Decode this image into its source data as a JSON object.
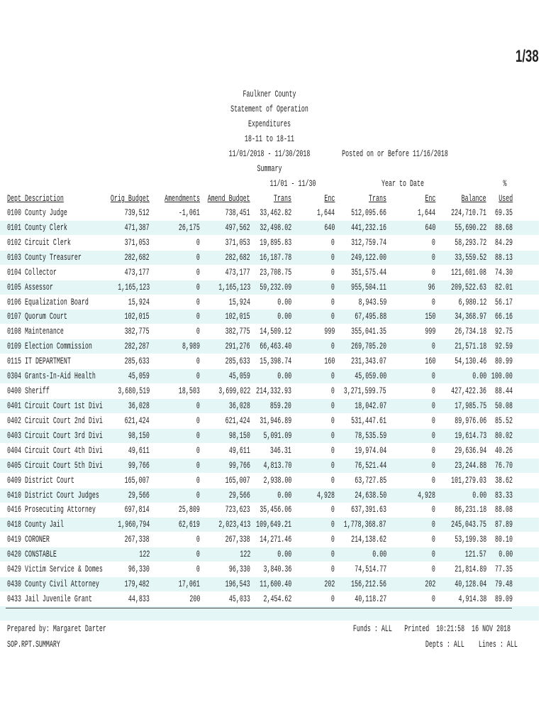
{
  "page_number": "1/38",
  "header": {
    "lines": [
      "Faulkner County",
      "Statement of Operation",
      "Expenditures",
      "18-11 to 18-11",
      "11/01/2018 - 11/30/2018",
      "Summary"
    ],
    "posted": "Posted on or Before 11/16/2018"
  },
  "table": {
    "group_headers": [
      "11/01 - 11/30",
      "Year to Date",
      "%"
    ],
    "headers": [
      "Dept Description",
      "Orig Budget",
      "Amendments",
      "Amend Budget",
      "Trans",
      "Enc",
      "Trans",
      "Enc",
      "Balance",
      "Used"
    ],
    "rows": [
      [
        "0100 County Judge",
        "739,512",
        "-1,061",
        "738,451",
        "33,462.82",
        "1,644",
        "512,095.66",
        "1,644",
        "224,710.71",
        "69.35"
      ],
      [
        "0101 County Clerk",
        "471,387",
        "26,175",
        "497,562",
        "32,498.02",
        "640",
        "441,232.16",
        "640",
        "55,690.22",
        "88.68"
      ],
      [
        "0102 Circuit Clerk",
        "371,053",
        "0",
        "371,053",
        "19,895.83",
        "0",
        "312,759.74",
        "0",
        "58,293.72",
        "84.29"
      ],
      [
        "0103 County Treasurer",
        "282,682",
        "0",
        "282,682",
        "16,187.78",
        "0",
        "249,122.00",
        "0",
        "33,559.52",
        "88.13"
      ],
      [
        "0104 Collector",
        "473,177",
        "0",
        "473,177",
        "23,708.75",
        "0",
        "351,575.44",
        "0",
        "121,601.08",
        "74.30"
      ],
      [
        "0105 Assessor",
        "1,165,123",
        "0",
        "1,165,123",
        "59,232.09",
        "0",
        "955,504.11",
        "96",
        "209,522.63",
        "82.01"
      ],
      [
        "0106 Equalization Board",
        "15,924",
        "0",
        "15,924",
        "0.00",
        "0",
        "8,943.59",
        "0",
        "6,980.12",
        "56.17"
      ],
      [
        "0107 Quorum Court",
        "102,015",
        "0",
        "102,015",
        "0.00",
        "0",
        "67,495.88",
        "150",
        "34,368.97",
        "66.16"
      ],
      [
        "0108 Maintenance",
        "382,775",
        "0",
        "382,775",
        "14,509.12",
        "999",
        "355,041.35",
        "999",
        "26,734.18",
        "92.75"
      ],
      [
        "0109 Election Commission",
        "282,287",
        "8,989",
        "291,276",
        "66,463.40",
        "0",
        "269,705.20",
        "0",
        "21,571.18",
        "92.59"
      ],
      [
        "0115 IT DEPARTMENT",
        "285,633",
        "0",
        "285,633",
        "15,398.74",
        "160",
        "231,343.07",
        "160",
        "54,130.46",
        "80.99"
      ],
      [
        "0304 Grants-In-Aid Health",
        "45,059",
        "0",
        "45,059",
        "0.00",
        "0",
        "45,059.00",
        "0",
        "0.00",
        "100.00"
      ],
      [
        "0400 Sheriff",
        "3,680,519",
        "18,503",
        "3,699,022",
        "214,332.93",
        "0",
        "3,271,599.75",
        "0",
        "427,422.36",
        "88.44"
      ],
      [
        "0401 Circuit Court 1st Divi",
        "36,028",
        "0",
        "36,028",
        "859.20",
        "0",
        "18,042.07",
        "0",
        "17,985.75",
        "50.08"
      ],
      [
        "0402 Circuit Court 2nd Divi",
        "621,424",
        "0",
        "621,424",
        "31,946.89",
        "0",
        "531,447.61",
        "0",
        "89,976.06",
        "85.52"
      ],
      [
        "0403 Circuit Court 3rd Divi",
        "98,150",
        "0",
        "98,150",
        "5,091.09",
        "0",
        "78,535.59",
        "0",
        "19,614.73",
        "80.02"
      ],
      [
        "0404 Circuit Court 4th Divi",
        "49,611",
        "0",
        "49,611",
        "346.31",
        "0",
        "19,974.04",
        "0",
        "29,636.94",
        "40.26"
      ],
      [
        "0405 Circuit Court 5th Divi",
        "99,766",
        "0",
        "99,766",
        "4,813.70",
        "0",
        "76,521.44",
        "0",
        "23,244.88",
        "76.70"
      ],
      [
        "0409 District Court",
        "165,007",
        "0",
        "165,007",
        "2,938.00",
        "0",
        "63,727.85",
        "0",
        "101,279.03",
        "38.62"
      ],
      [
        "0410 District Court Judges",
        "29,566",
        "0",
        "29,566",
        "0.00",
        "4,928",
        "24,638.50",
        "4,928",
        "0.00",
        "83.33"
      ],
      [
        "0416 Prosecuting Attorney",
        "697,814",
        "25,809",
        "723,623",
        "35,456.06",
        "0",
        "637,391.63",
        "0",
        "86,231.18",
        "88.08"
      ],
      [
        "0418 County Jail",
        "1,960,794",
        "62,619",
        "2,023,413",
        "109,649.21",
        "0",
        "1,778,368.87",
        "0",
        "245,043.75",
        "87.89"
      ],
      [
        "0419 CORONER",
        "267,338",
        "0",
        "267,338",
        "14,271.46",
        "0",
        "214,138.62",
        "0",
        "53,199.38",
        "80.10"
      ],
      [
        "0420 CONSTABLE",
        "122",
        "0",
        "122",
        "0.00",
        "0",
        "0.00",
        "0",
        "121.57",
        "0.00"
      ],
      [
        "0429 Victim Service & Domes",
        "96,330",
        "0",
        "96,330",
        "3,840.36",
        "0",
        "74,514.77",
        "0",
        "21,814.89",
        "77.35"
      ],
      [
        "0430 County Civil Attorney",
        "179,482",
        "17,061",
        "196,543",
        "11,600.40",
        "202",
        "156,212.56",
        "202",
        "40,128.04",
        "79.48"
      ],
      [
        "0433 Jail Juvenile Grant",
        "44,833",
        "200",
        "45,033",
        "2,454.62",
        "0",
        "40,118.27",
        "0",
        "4,914.38",
        "89.09"
      ]
    ]
  },
  "footer": {
    "prepared": "Prepared by: Margaret Darter",
    "report_id": "SOP.RPT.SUMMARY",
    "funds": "Funds : ALL",
    "printed": "Printed  10:21:58  16 NOV 2018",
    "depts": "Depts : ALL",
    "lines": "Lines : ALL"
  }
}
